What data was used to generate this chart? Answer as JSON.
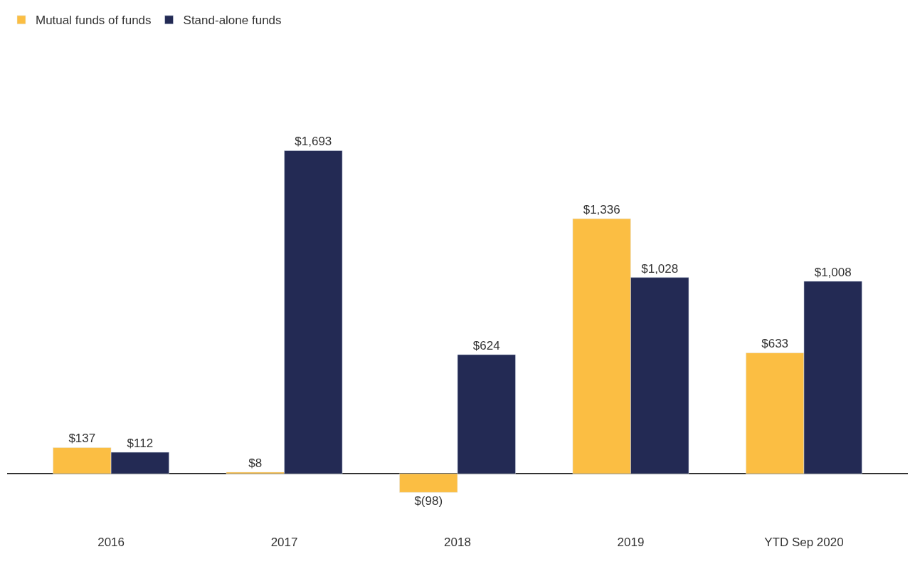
{
  "chart_data": {
    "type": "bar",
    "categories": [
      "2016",
      "2017",
      "2018",
      "2019",
      "YTD Sep 2020"
    ],
    "series": [
      {
        "name": "Mutual funds of funds",
        "color": "#fbbe43",
        "values": [
          137,
          8,
          -98,
          1336,
          633
        ],
        "value_labels": [
          "$137",
          "$8",
          "$(98)",
          "$1,336",
          "$633"
        ]
      },
      {
        "name": "Stand-alone funds",
        "color": "#232a54",
        "values": [
          112,
          1693,
          624,
          1028,
          1008
        ],
        "value_labels": [
          "$112",
          "$1,693",
          "$624",
          "$1,028",
          "$1,008"
        ]
      }
    ],
    "legend": "top left"
  }
}
